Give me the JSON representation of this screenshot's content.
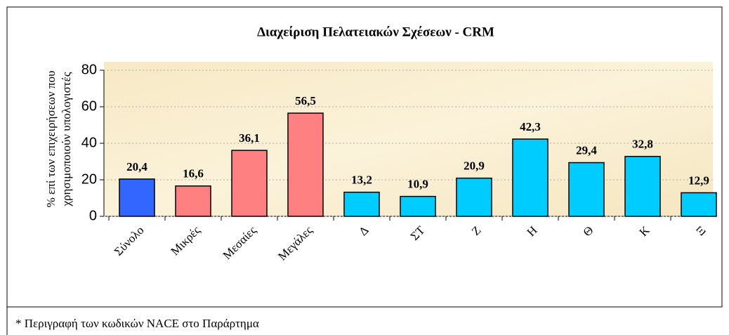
{
  "chart_data": {
    "type": "bar",
    "title": "Διαχείριση Πελατειακών Σχέσεων - CRM",
    "y_label": [
      "% επί των επιχειρήσεων που",
      "χρησιμοποιούν υπολογιστές"
    ],
    "categories": [
      "Σύνολο",
      "Μικρές",
      "Μεσαίες",
      "Μεγάλες",
      "Δ",
      "ΣΤ",
      "Ζ",
      "Η",
      "Θ",
      "Κ",
      "Ξ"
    ],
    "values": [
      20.4,
      16.6,
      36.1,
      56.5,
      13.2,
      10.9,
      20.9,
      42.3,
      29.4,
      32.8,
      12.9
    ],
    "value_labels": [
      "20,4",
      "16,6",
      "36,1",
      "56,5",
      "13,2",
      "10,9",
      "20,9",
      "42,3",
      "29,4",
      "32,8",
      "12,9"
    ],
    "colors": [
      "#3366ff",
      "#ff8080",
      "#ff8080",
      "#ff8080",
      "#00ccff",
      "#00ccff",
      "#00ccff",
      "#00ccff",
      "#00ccff",
      "#00ccff",
      "#00ccff"
    ],
    "ylim": [
      0,
      80
    ],
    "yticks": [
      0,
      20,
      40,
      60,
      80
    ],
    "note": "* Περιγραφή των κωδικών NACE στο Παράρτημα"
  }
}
